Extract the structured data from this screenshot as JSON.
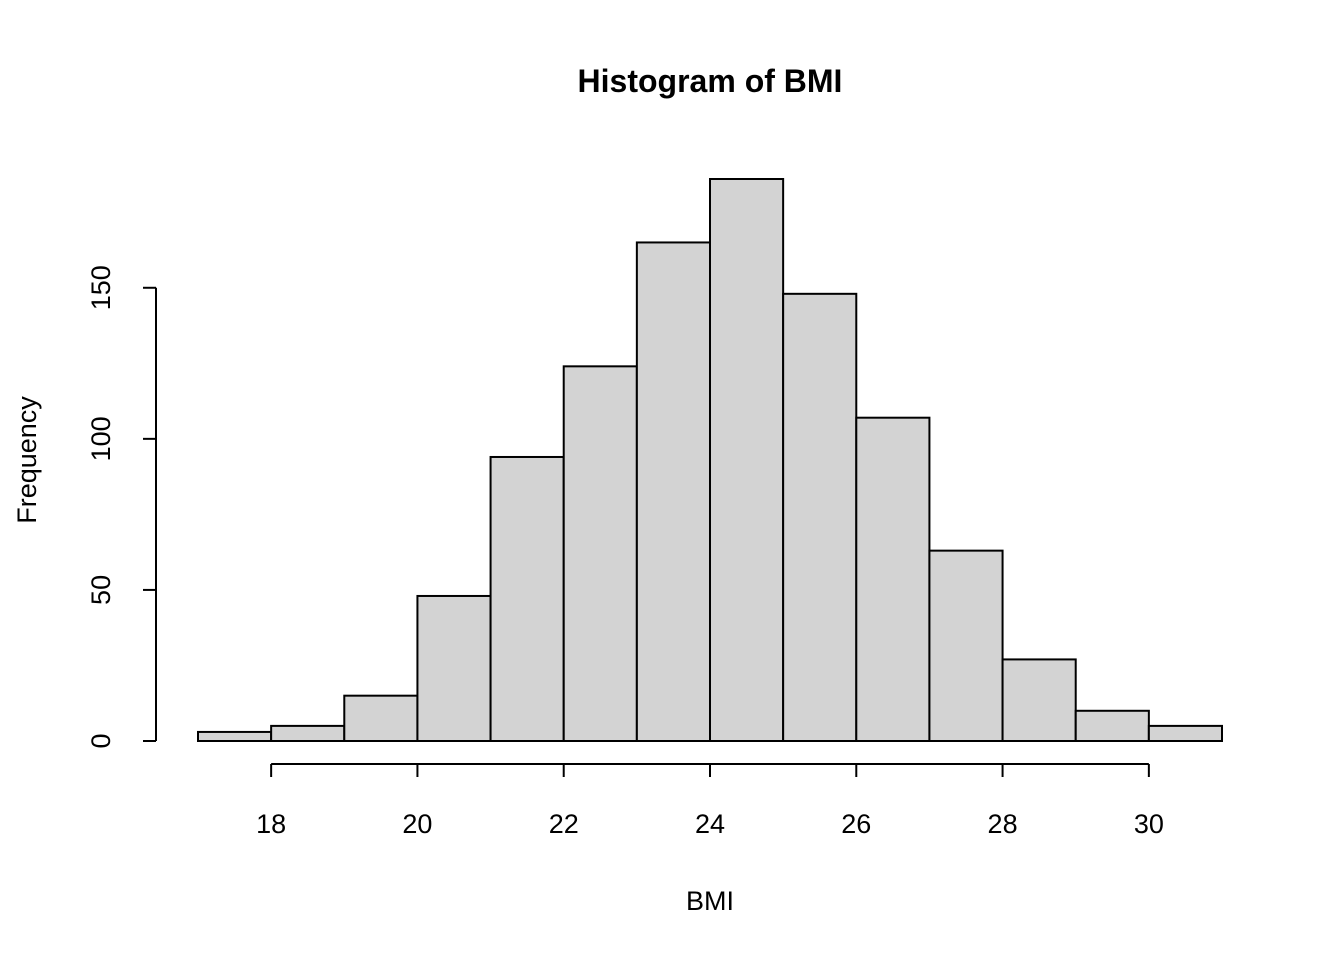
{
  "chart_data": {
    "type": "bar",
    "subtype": "histogram",
    "title": "Histogram of BMI",
    "xlabel": "BMI",
    "ylabel": "Frequency",
    "bar_color": "#d3d3d3",
    "border_color": "#000000",
    "grid": false,
    "legend": "none",
    "bins": [
      {
        "x0": 17,
        "x1": 18,
        "count": 3
      },
      {
        "x0": 18,
        "x1": 19,
        "count": 5
      },
      {
        "x0": 19,
        "x1": 20,
        "count": 15
      },
      {
        "x0": 20,
        "x1": 21,
        "count": 48
      },
      {
        "x0": 21,
        "x1": 22,
        "count": 94
      },
      {
        "x0": 22,
        "x1": 23,
        "count": 124
      },
      {
        "x0": 23,
        "x1": 24,
        "count": 165
      },
      {
        "x0": 24,
        "x1": 25,
        "count": 186
      },
      {
        "x0": 25,
        "x1": 26,
        "count": 148
      },
      {
        "x0": 26,
        "x1": 27,
        "count": 107
      },
      {
        "x0": 27,
        "x1": 28,
        "count": 63
      },
      {
        "x0": 28,
        "x1": 29,
        "count": 27
      },
      {
        "x0": 29,
        "x1": 30,
        "count": 10
      },
      {
        "x0": 30,
        "x1": 31,
        "count": 5
      }
    ],
    "xlim": [
      17,
      31
    ],
    "ylim": [
      0,
      186
    ],
    "x_ticks": [
      18,
      20,
      22,
      24,
      26,
      28,
      30
    ],
    "x_tick_labels": [
      "18",
      "20",
      "22",
      "24",
      "26",
      "28",
      "30"
    ],
    "y_ticks": [
      0,
      50,
      100,
      150
    ],
    "y_tick_labels": [
      "0",
      "50",
      "100",
      "150"
    ]
  }
}
